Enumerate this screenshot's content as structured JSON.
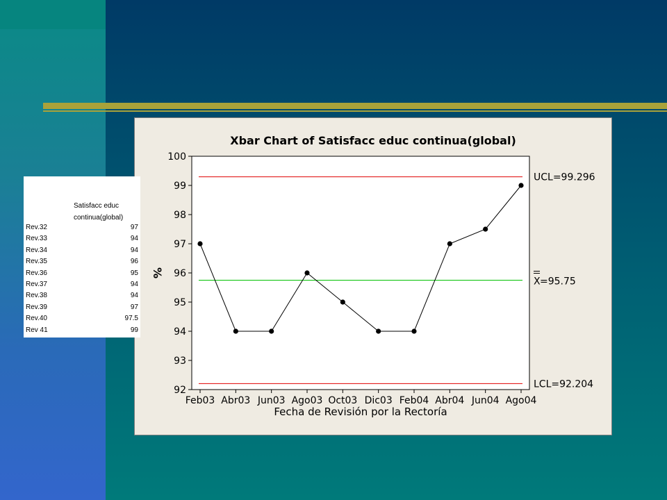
{
  "table": {
    "header_line1": "Satisfacc educ",
    "header_line2": "continua(global)",
    "rows": [
      {
        "label": "Rev.32",
        "value": "97"
      },
      {
        "label": "Rev.33",
        "value": "94"
      },
      {
        "label": "Rev.34",
        "value": "94"
      },
      {
        "label": "Rev.35",
        "value": "96"
      },
      {
        "label": "Rev.36",
        "value": "95"
      },
      {
        "label": "Rev.37",
        "value": "94"
      },
      {
        "label": "Rev.38",
        "value": "94"
      },
      {
        "label": "Rev.39",
        "value": "97"
      },
      {
        "label": "Rev.40",
        "value": "97.5"
      },
      {
        "label": "Rev 41",
        "value": "99"
      }
    ]
  },
  "chart_data": {
    "type": "line",
    "title": "Xbar Chart of Satisfacc educ continua(global)",
    "xlabel": "Fecha de Revisión por la Rectoría",
    "ylabel": "%",
    "categories": [
      "Feb03",
      "Abr03",
      "Jun03",
      "Ago03",
      "Oct03",
      "Dic03",
      "Feb04",
      "Abr04",
      "Jun04",
      "Ago04"
    ],
    "values": [
      97,
      94,
      94,
      96,
      95,
      94,
      94,
      97,
      97.5,
      99
    ],
    "ylim": [
      92,
      100
    ],
    "yticks": [
      92,
      93,
      94,
      95,
      96,
      97,
      98,
      99,
      100
    ],
    "grid": false,
    "control_limits": [
      {
        "name": "UCL",
        "value": 99.296,
        "label": "UCL=99.296",
        "color": "#e00000"
      },
      {
        "name": "Xbar",
        "value": 95.75,
        "label": "=95.75",
        "color": "#00c000"
      },
      {
        "name": "LCL",
        "value": 92.204,
        "label": "LCL=92.204",
        "color": "#e00000"
      }
    ]
  }
}
